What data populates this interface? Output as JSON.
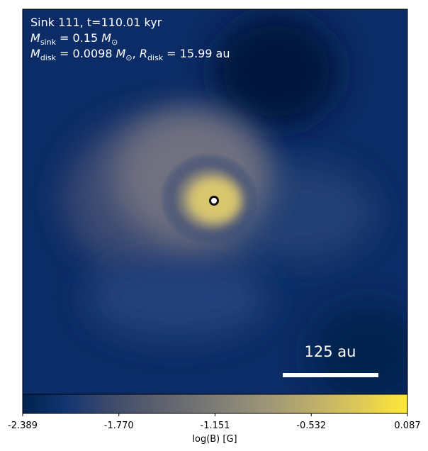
{
  "chart_data": {
    "type": "image",
    "annotations": [
      [
        {
          "text": "Sink 111, t=110.01 kyr"
        }
      ],
      [
        {
          "text": "M",
          "italic": true
        },
        {
          "text": "sink",
          "sub": true
        },
        {
          "text": " = 0.15 "
        },
        {
          "text": "M",
          "italic": true
        },
        {
          "text": "⊙",
          "sub": true
        }
      ],
      [
        {
          "text": "M",
          "italic": true
        },
        {
          "text": "disk",
          "sub": true
        },
        {
          "text": " = 0.0098 "
        },
        {
          "text": "M",
          "italic": true
        },
        {
          "text": "⊙",
          "sub": true
        },
        {
          "text": ", "
        },
        {
          "text": "R",
          "italic": true
        },
        {
          "text": "disk",
          "sub": true
        },
        {
          "text": " = 15.99 au"
        }
      ]
    ],
    "scale_bar_label": "125 au",
    "colorbar": {
      "label": "log(B) [G]",
      "clim": [
        -2.389,
        0.087
      ],
      "ticks": [
        -2.389,
        {
          "value": -1.77,
          "label": "-1.770"
        },
        -1.151,
        -0.532,
        0.087
      ],
      "colors": [
        "#00224e",
        "#123570",
        "#3b496c",
        "#575d6d",
        "#707173",
        "#8a8678",
        "#a59c74",
        "#c3b369",
        "#e1cc55",
        "#fee838"
      ]
    }
  }
}
